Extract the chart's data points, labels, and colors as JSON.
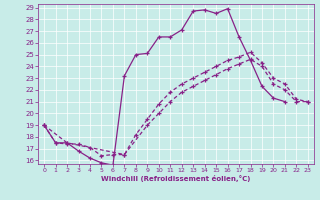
{
  "bg_color": "#c8ece8",
  "line_color": "#882288",
  "xlim": [
    -0.5,
    23.5
  ],
  "ylim": [
    15.7,
    29.3
  ],
  "xticks": [
    0,
    1,
    2,
    3,
    4,
    5,
    6,
    7,
    8,
    9,
    10,
    11,
    12,
    13,
    14,
    15,
    16,
    17,
    18,
    19,
    20,
    21,
    22,
    23
  ],
  "yticks": [
    16,
    17,
    18,
    19,
    20,
    21,
    22,
    23,
    24,
    25,
    26,
    27,
    28,
    29
  ],
  "xlabel": "Windchill (Refroidissement éolien,°C)",
  "curve1_x": [
    0,
    1,
    2,
    3,
    4,
    5,
    6,
    7,
    8,
    9,
    10,
    11,
    12,
    13,
    14,
    15,
    16,
    17,
    18,
    19,
    20,
    21,
    22,
    23
  ],
  "curve1_y": [
    19,
    17.5,
    17.5,
    16.8,
    16.2,
    15.8,
    15.6,
    23.2,
    25.0,
    25.1,
    26.5,
    26.5,
    27.1,
    28.7,
    28.8,
    28.5,
    28.9,
    26.5,
    24.5,
    22.3,
    21.3,
    21.0,
    null,
    null
  ],
  "curve2_x": [
    0,
    1,
    2,
    3,
    4,
    5,
    6,
    7,
    8,
    9,
    10,
    11,
    12,
    13,
    14,
    15,
    16,
    17,
    18,
    19,
    20,
    21,
    22,
    23
  ],
  "curve2_y": [
    19,
    17.5,
    17.4,
    17.4,
    17.1,
    16.4,
    16.5,
    16.5,
    18.2,
    19.5,
    20.8,
    21.8,
    22.5,
    23.0,
    23.5,
    24.0,
    24.5,
    24.8,
    25.2,
    24.3,
    23.0,
    22.5,
    21.2,
    21.0
  ],
  "curve3_x": [
    0,
    2,
    7,
    9,
    10,
    11,
    12,
    13,
    14,
    15,
    16,
    17,
    18,
    19,
    20,
    21,
    22,
    23
  ],
  "curve3_y": [
    19,
    17.5,
    16.5,
    19.0,
    20.0,
    21.0,
    21.8,
    22.3,
    22.8,
    23.3,
    23.8,
    24.2,
    24.6,
    24.0,
    22.5,
    22.0,
    21.0,
    21.0
  ]
}
